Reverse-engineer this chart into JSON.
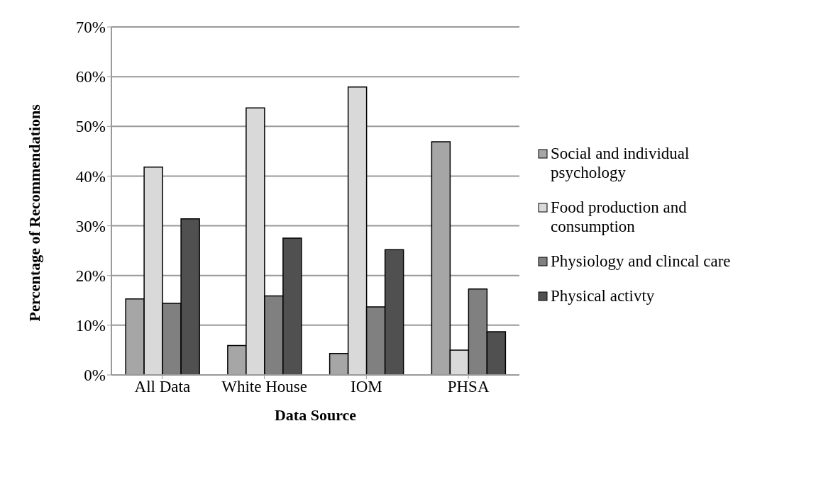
{
  "chart_data": {
    "type": "bar",
    "xlabel": "Data Source",
    "ylabel": "Percentage of Recommendations",
    "categories": [
      "All Data",
      "White House",
      "IOM",
      "PHSA"
    ],
    "series": [
      {
        "name": "Social and individual psychology",
        "color": "#a6a6a6",
        "values": [
          15.3,
          5.9,
          4.3,
          46.9
        ]
      },
      {
        "name": "Food production and consumption",
        "color": "#d9d9d9",
        "values": [
          41.8,
          53.7,
          57.9,
          5.0
        ]
      },
      {
        "name": "Physiology and clincal care",
        "color": "#808080",
        "values": [
          14.4,
          15.9,
          13.7,
          17.3
        ]
      },
      {
        "name": "Physical activty",
        "color": "#505050",
        "values": [
          31.4,
          27.5,
          25.2,
          8.7
        ]
      }
    ],
    "ylim": [
      0,
      70
    ],
    "yticks": [
      {
        "value": 0,
        "label": "0%"
      },
      {
        "value": 10,
        "label": "10%"
      },
      {
        "value": 20,
        "label": "20%"
      },
      {
        "value": 30,
        "label": "30%"
      },
      {
        "value": 40,
        "label": "40%"
      },
      {
        "value": 50,
        "label": "50%"
      },
      {
        "value": 60,
        "label": "60%"
      },
      {
        "value": 70,
        "label": "70%"
      }
    ],
    "grid": "y",
    "legend": "right"
  }
}
